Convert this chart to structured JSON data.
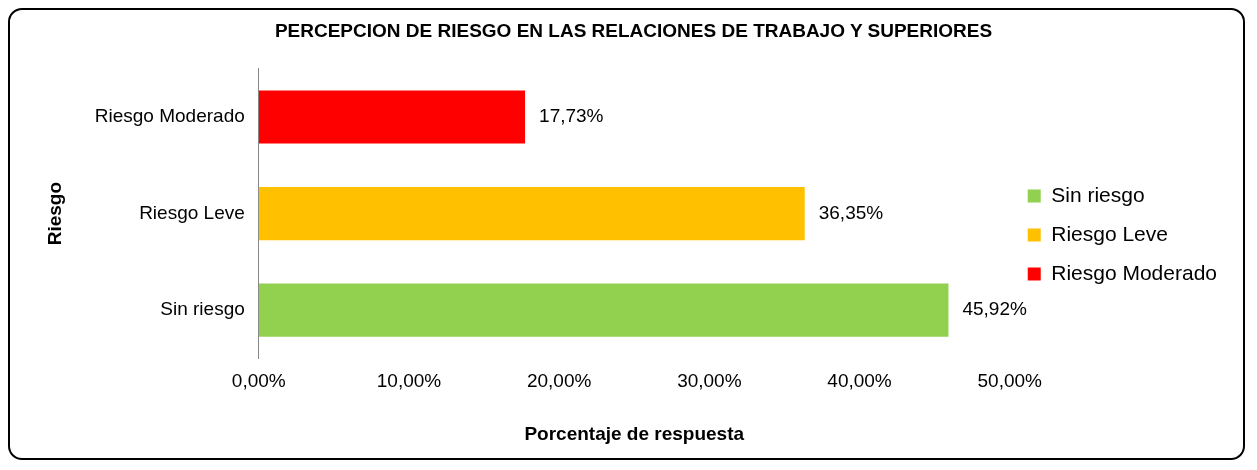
{
  "chart_data": {
    "type": "bar",
    "orientation": "horizontal",
    "title": "PERCEPCION DE RIESGO EN LAS RELACIONES DE TRABAJO Y SUPERIORES",
    "xlabel": "Porcentaje de respuesta",
    "ylabel": "Riesgo",
    "categories": [
      "Riesgo Moderado",
      "Riesgo Leve",
      "Sin riesgo"
    ],
    "series": [
      {
        "name": "Sin riesgo",
        "color": "#92d050",
        "values": [
          null,
          null,
          45.92
        ],
        "value_labels": [
          null,
          null,
          "45,92%"
        ]
      },
      {
        "name": "Riesgo Leve",
        "color": "#ffc000",
        "values": [
          null,
          36.35,
          null
        ],
        "value_labels": [
          null,
          "36,35%",
          null
        ]
      },
      {
        "name": "Riesgo Moderado",
        "color": "#ff0000",
        "values": [
          17.73,
          null,
          null
        ],
        "value_labels": [
          "17,73%",
          null,
          null
        ]
      }
    ],
    "xlim": [
      0,
      50
    ],
    "xticks": [
      {
        "value": 0,
        "label": "0,00%"
      },
      {
        "value": 10,
        "label": "10,00%"
      },
      {
        "value": 20,
        "label": "20,00%"
      },
      {
        "value": 30,
        "label": "30,00%"
      },
      {
        "value": 40,
        "label": "40,00%"
      },
      {
        "value": 50,
        "label": "50,00%"
      }
    ],
    "grid": false,
    "legend": "right"
  }
}
